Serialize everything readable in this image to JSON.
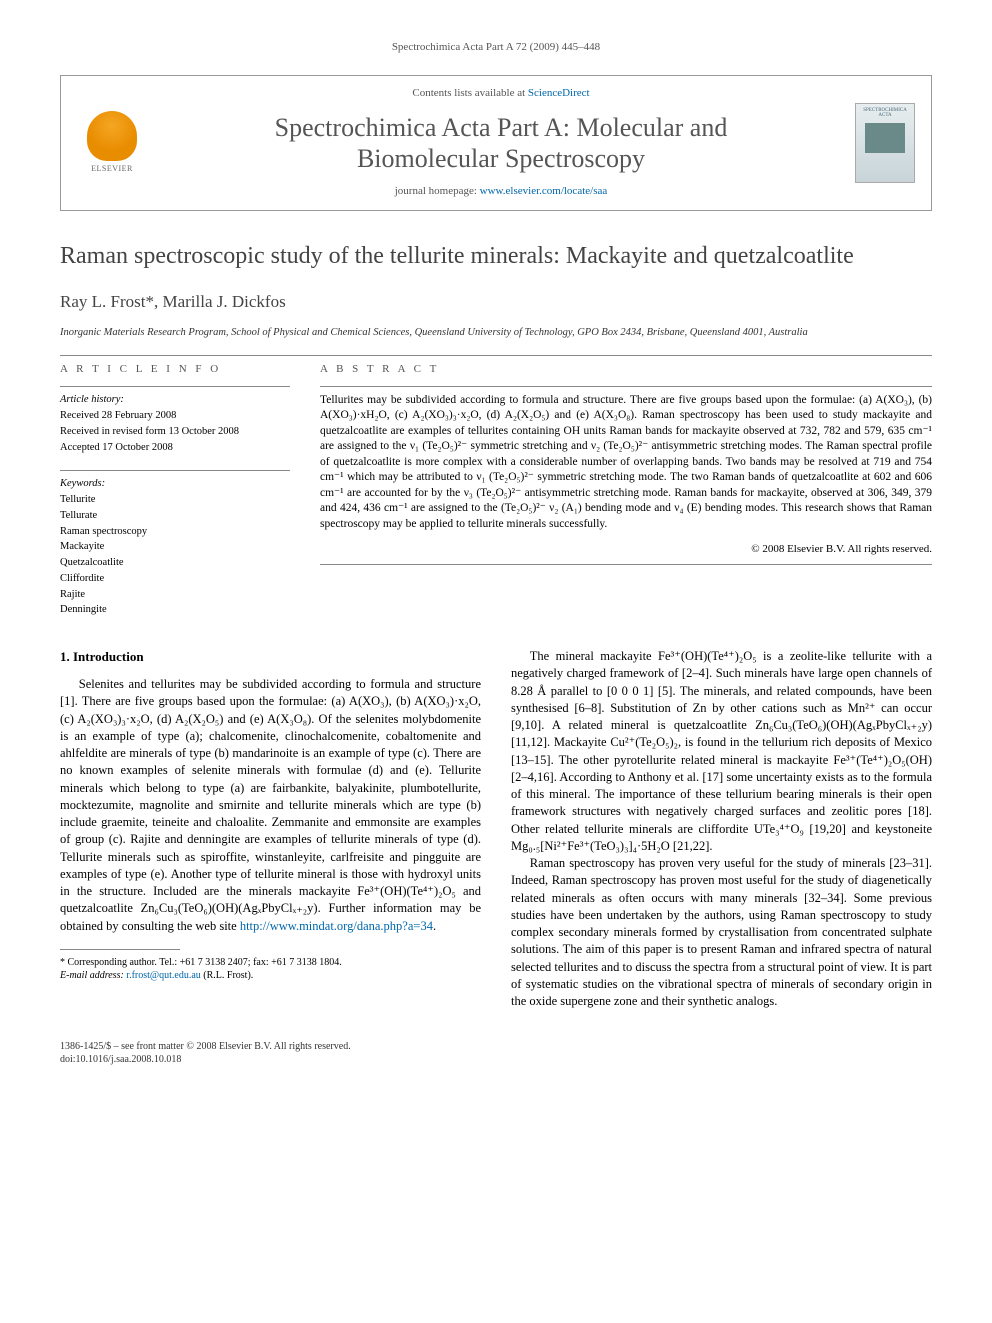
{
  "header": {
    "running_head": "Spectrochimica Acta Part A 72 (2009) 445–448",
    "contents_prefix": "Contents lists available at ",
    "contents_link_text": "ScienceDirect",
    "journal_title_line1": "Spectrochimica Acta Part A: Molecular and",
    "journal_title_line2": "Biomolecular Spectroscopy",
    "homepage_prefix": "journal homepage: ",
    "homepage_link": "www.elsevier.com/locate/saa",
    "elsevier_label": "ELSEVIER",
    "cover_label": "SPECTROCHIMICA ACTA"
  },
  "article": {
    "title": "Raman spectroscopic study of the tellurite minerals: Mackayite and quetzalcoatlite",
    "authors": "Ray L. Frost*, Marilla J. Dickfos",
    "affiliation": "Inorganic Materials Research Program, School of Physical and Chemical Sciences, Queensland University of Technology, GPO Box 2434, Brisbane, Queensland 4001, Australia"
  },
  "info": {
    "heading": "A R T I C L E   I N F O",
    "history_label": "Article history:",
    "history": [
      "Received 28 February 2008",
      "Received in revised form 13 October 2008",
      "Accepted 17 October 2008"
    ],
    "keywords_label": "Keywords:",
    "keywords": [
      "Tellurite",
      "Tellurate",
      "Raman spectroscopy",
      "Mackayite",
      "Quetzalcoatlite",
      "Cliffordite",
      "Rajite",
      "Denningite"
    ]
  },
  "abstract": {
    "heading": "A B S T R A C T",
    "text": "Tellurites may be subdivided according to formula and structure. There are five groups based upon the formulae: (a) A(XO₃), (b) A(XO₃)·xH₂O, (c) A₂(XO₃)₃·x₂O, (d) A₂(X₂O₅) and (e) A(X₃O₈). Raman spectroscopy has been used to study mackayite and quetzalcoatlite are examples of tellurites containing OH units Raman bands for mackayite observed at 732, 782 and 579, 635 cm⁻¹ are assigned to the ν₁ (Te₂O₅)²⁻ symmetric stretching and ν₂ (Te₂O₅)²⁻ antisymmetric stretching modes. The Raman spectral profile of quetzalcoatlite is more complex with a considerable number of overlapping bands. Two bands may be resolved at 719 and 754 cm⁻¹ which may be attributed to ν₁ (Te₂O₅)²⁻ symmetric stretching mode. The two Raman bands of quetzalcoatlite at 602 and 606 cm⁻¹ are accounted for by the ν₃ (Te₂O₅)²⁻ antisymmetric stretching mode. Raman bands for mackayite, observed at 306, 349, 379 and 424, 436 cm⁻¹ are assigned to the (Te₂O₅)²⁻ ν₂ (A₁) bending mode and ν₄ (E) bending modes. This research shows that Raman spectroscopy may be applied to tellurite minerals successfully.",
    "copyright": "© 2008 Elsevier B.V. All rights reserved."
  },
  "body": {
    "section1_heading": "1.  Introduction",
    "para1": "Selenites and tellurites may be subdivided according to formula and structure [1]. There are five groups based upon the formulae: (a) A(XO₃), (b) A(XO₃)·x₂O, (c) A₂(XO₃)₃·x₂O, (d) A₂(X₂O₅) and (e) A(X₃O₈). Of the selenites molybdomenite is an example of type (a); chalcomenite, clinochalcomenite, cobaltomenite and ahlfeldite are minerals of type (b) mandarinoite is an example of type (c). There are no known examples of selenite minerals with formulae (d) and (e). Tellurite minerals which belong to type (a) are fairbankite, balyakinite, plumbotellurite, mocktezumite, magnolite and smirnite and tellurite minerals which are type (b) include graemite, teineite and chaloalite. Zemmanite and emmonsite are examples of group (c). Rajite and denningite are examples of tellurite minerals of type (d). Tellurite minerals such as spiroffite, winstanleyite, carlfreisite and pingguite are examples of type (e). Another type of tellurite mineral is those with hydroxyl units in the structure. Included are the minerals mackayite Fe³⁺(OH)(Te⁴⁺)₂O₅ and quetzalcoatlite Zn₆Cu₃(TeO₆)(OH)(AgₓPbyClₓ₊₂y). Further information may be obtained by consulting the web site ",
    "para1_link": "http://www.mindat.org/dana.php?a=34",
    "para2": "The mineral mackayite Fe³⁺(OH)(Te⁴⁺)₂O₅ is a zeolite-like tellurite with a negatively charged framework of [2–4]. Such minerals have large open channels of 8.28 Å parallel to [0 0 0 1] [5]. The minerals, and related compounds, have been synthesised [6–8]. Substitution of Zn by other cations such as Mn²⁺ can occur [9,10]. A related mineral is quetzalcoatlite Zn₆Cu₃(TeO₆)(OH)(AgₓPbyClₓ₊₂y) [11,12]. Mackayite Cu²⁺(Te₂O₅)₂, is found in the tellurium rich deposits of Mexico [13–15]. The other pyrotellurite related mineral is mackayite Fe³⁺(Te⁴⁺)₂O₅(OH) [2–4,16]. According to Anthony et al. [17] some uncertainty exists as to the formula of this mineral. The importance of these tellurium bearing minerals is their open framework structures with negatively charged surfaces and zeolitic pores [18]. Other related tellurite minerals are cliffordite UTe₃⁴⁺O₉ [19,20] and keystoneite Mg₀.₅[Ni²⁺Fe³⁺(TeO₃)₃]₄·5H₂O [21,22].",
    "para3": "Raman spectroscopy has proven very useful for the study of minerals [23–31]. Indeed, Raman spectroscopy has proven most useful for the study of diagenetically related minerals as often occurs with many minerals [32–34]. Some previous studies have been undertaken by the authors, using Raman spectroscopy to study complex secondary minerals formed by crystallisation from concentrated sulphate solutions. The aim of this paper is to present Raman and infrared spectra of natural selected tellurites and to discuss the spectra from a structural point of view. It is part of systematic studies on the vibrational spectra of minerals of secondary origin in the oxide supergene zone and their synthetic analogs."
  },
  "footnote": {
    "corr_line": "* Corresponding author. Tel.: +61 7 3138 2407; fax: +61 7 3138 1804.",
    "email_label": "E-mail address: ",
    "email": "r.frost@qut.edu.au",
    "email_suffix": " (R.L. Frost)."
  },
  "footer": {
    "line1": "1386-1425/$ – see front matter © 2008 Elsevier B.V. All rights reserved.",
    "line2": "doi:10.1016/j.saa.2008.10.018"
  }
}
